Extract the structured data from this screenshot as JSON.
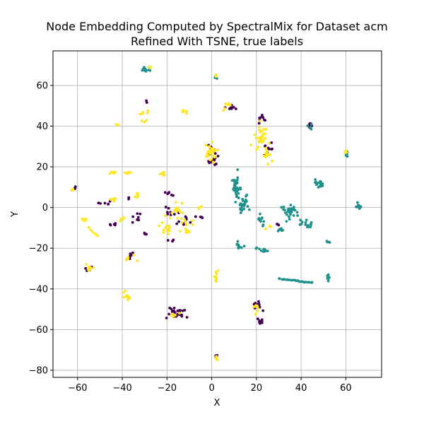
{
  "chart_data": {
    "type": "scatter",
    "title": "Node Embedding Computed by SpectralMix for Dataset acm",
    "subtitle": "Refined With TSNE, true labels",
    "xlabel": "X",
    "ylabel": "Y",
    "xlim": [
      -71,
      76
    ],
    "ylim": [
      -83.5,
      77
    ],
    "x_ticks": [
      -60,
      -40,
      -20,
      0,
      20,
      40,
      60
    ],
    "y_ticks": [
      -80,
      -60,
      -40,
      -20,
      0,
      20,
      40,
      60
    ],
    "grid": true,
    "legend": "none",
    "colors": {
      "purple": "#440154",
      "teal": "#21918c",
      "yellow": "#fde725"
    },
    "series": [
      {
        "color": "#440154",
        "clusters": [
          {
            "x": -55,
            "y": -30,
            "sx": 1.5,
            "sy": 1.2,
            "n": 6
          },
          {
            "x": -37,
            "y": -24,
            "sx": 1.5,
            "sy": 2.0,
            "n": 8
          },
          {
            "x": -33,
            "y": -5,
            "sx": 2.0,
            "sy": 3.0,
            "n": 8
          },
          {
            "x": -44,
            "y": -8,
            "sx": 1.5,
            "sy": 1.5,
            "n": 5
          },
          {
            "x": -47,
            "y": 2,
            "sx": 1.5,
            "sy": 1.0,
            "n": 4
          },
          {
            "x": -37,
            "y": 5,
            "sx": 1.0,
            "sy": 1.0,
            "n": 2
          },
          {
            "x": -29,
            "y": 52,
            "sx": 0.5,
            "sy": 0.5,
            "n": 2
          },
          {
            "x": -19,
            "y": 7,
            "sx": 2.0,
            "sy": 2.0,
            "n": 6
          },
          {
            "x": -20,
            "y": -2,
            "sx": 2.5,
            "sy": 1.5,
            "n": 6
          },
          {
            "x": -13,
            "y": -6,
            "sx": 4.0,
            "sy": 2.5,
            "n": 12
          },
          {
            "x": -18,
            "y": -16,
            "sx": 1.5,
            "sy": 1.5,
            "n": 3
          },
          {
            "x": 0,
            "y": 24,
            "sx": 2.2,
            "sy": 3.5,
            "n": 22
          },
          {
            "x": -5,
            "y": -5,
            "sx": 1.0,
            "sy": 1.0,
            "n": 3
          },
          {
            "x": 8,
            "y": 50,
            "sx": 2.5,
            "sy": 1.5,
            "n": 8
          },
          {
            "x": 22,
            "y": 43,
            "sx": 1.5,
            "sy": 2.0,
            "n": 8
          },
          {
            "x": 25,
            "y": 30,
            "sx": 2.0,
            "sy": 3.0,
            "n": 10
          },
          {
            "x": 21,
            "y": -48,
            "sx": 1.5,
            "sy": 1.5,
            "n": 12
          },
          {
            "x": 22,
            "y": -56,
            "sx": 1.0,
            "sy": 1.5,
            "n": 8
          },
          {
            "x": -15,
            "y": -52,
            "sx": 4.0,
            "sy": 2.0,
            "n": 28
          },
          {
            "x": 44,
            "y": 41,
            "sx": 0.6,
            "sy": 1.5,
            "n": 8
          },
          {
            "x": -62,
            "y": 10,
            "sx": 1.0,
            "sy": 0.6,
            "n": 3
          },
          {
            "x": 2,
            "y": -73,
            "sx": 0.5,
            "sy": 1.0,
            "n": 4
          },
          {
            "x": -50,
            "y": 2,
            "sx": 1.0,
            "sy": 1.0,
            "n": 2
          },
          {
            "x": -30,
            "y": -13,
            "sx": 1.0,
            "sy": 1.0,
            "n": 3
          },
          {
            "x": 29,
            "y": -8,
            "sx": 1.0,
            "sy": 1.0,
            "n": 3
          }
        ]
      },
      {
        "color": "#21918c",
        "clusters": [
          {
            "x": 11,
            "y": 10,
            "sx": 1.2,
            "sy": 4.0,
            "n": 40
          },
          {
            "x": 14,
            "y": 2,
            "sx": 1.5,
            "sy": 4.0,
            "n": 30
          },
          {
            "x": 22,
            "y": -6,
            "sx": 1.5,
            "sy": 2.0,
            "n": 10
          },
          {
            "x": 35,
            "y": -2,
            "sx": 3.0,
            "sy": 3.0,
            "n": 30
          },
          {
            "x": 42,
            "y": -8,
            "sx": 2.0,
            "sy": 2.0,
            "n": 14
          },
          {
            "x": 48,
            "y": 12,
            "sx": 2.0,
            "sy": 1.2,
            "n": 18
          },
          {
            "x": 66,
            "y": 1,
            "sx": 1.0,
            "sy": 1.0,
            "n": 12
          },
          {
            "x": 52,
            "y": -17,
            "sx": 0.8,
            "sy": 0.5,
            "n": 5
          },
          {
            "x": 52,
            "y": -34,
            "sx": 0.5,
            "sy": 1.5,
            "n": 10
          },
          {
            "x": 60,
            "y": 27,
            "sx": 0.6,
            "sy": 1.5,
            "n": 10
          },
          {
            "x": 44,
            "y": 40,
            "sx": 0.6,
            "sy": 1.5,
            "n": 6
          },
          {
            "x": -30,
            "y": 68,
            "sx": 1.5,
            "sy": 0.8,
            "n": 10
          },
          {
            "x": 12,
            "y": -18,
            "sx": 1.5,
            "sy": 2.0,
            "n": 10
          },
          {
            "x": 23,
            "y": -21,
            "sx": 2.0,
            "sy": 0.8,
            "n": 12
          },
          {
            "x": 2,
            "y": 64,
            "sx": 0.6,
            "sy": 1.0,
            "n": 4
          },
          {
            "x": 31,
            "y": -10,
            "sx": 1.0,
            "sy": 1.5,
            "n": 6
          }
        ],
        "line": {
          "x0": 30,
          "x1": 45,
          "y0": -35,
          "y1": -37,
          "n": 22
        }
      },
      {
        "color": "#fde725",
        "clusters": [
          {
            "x": 0,
            "y": 26,
            "sx": 2.2,
            "sy": 4.0,
            "n": 30
          },
          {
            "x": 22,
            "y": 35,
            "sx": 2.5,
            "sy": 4.0,
            "n": 30
          },
          {
            "x": 25,
            "y": 25,
            "sx": 1.5,
            "sy": 2.5,
            "n": 12
          },
          {
            "x": -55,
            "y": -30,
            "sx": 1.5,
            "sy": 1.2,
            "n": 10
          },
          {
            "x": -38,
            "y": -43,
            "sx": 1.2,
            "sy": 1.5,
            "n": 10
          },
          {
            "x": -20,
            "y": -10,
            "sx": 2.0,
            "sy": 4.0,
            "n": 14
          },
          {
            "x": -15,
            "y": -2,
            "sx": 3.0,
            "sy": 3.0,
            "n": 16
          },
          {
            "x": -11,
            "y": -10,
            "sx": 3.0,
            "sy": 2.0,
            "n": 12
          },
          {
            "x": -22,
            "y": 16,
            "sx": 1.0,
            "sy": 1.0,
            "n": 6
          },
          {
            "x": -38,
            "y": 17,
            "sx": 2.0,
            "sy": 0.6,
            "n": 6
          },
          {
            "x": -44,
            "y": 17,
            "sx": 1.5,
            "sy": 0.6,
            "n": 6
          },
          {
            "x": -44,
            "y": 4,
            "sx": 1.5,
            "sy": 0.8,
            "n": 8
          },
          {
            "x": -33,
            "y": 6,
            "sx": 1.5,
            "sy": 1.5,
            "n": 6
          },
          {
            "x": -40,
            "y": -6,
            "sx": 1.2,
            "sy": 2.0,
            "n": 6
          },
          {
            "x": -36,
            "y": -25,
            "sx": 2.0,
            "sy": 1.0,
            "n": 6
          },
          {
            "x": -57,
            "y": -6,
            "sx": 0.8,
            "sy": 1.0,
            "n": 6
          },
          {
            "x": -62,
            "y": 9,
            "sx": 0.6,
            "sy": 0.6,
            "n": 3
          },
          {
            "x": -30,
            "y": 45,
            "sx": 1.5,
            "sy": 2.0,
            "n": 8
          },
          {
            "x": -12,
            "y": 47,
            "sx": 1.2,
            "sy": 0.8,
            "n": 6
          },
          {
            "x": 7,
            "y": 50,
            "sx": 1.5,
            "sy": 1.5,
            "n": 6
          },
          {
            "x": 2,
            "y": 65,
            "sx": 0.5,
            "sy": 0.8,
            "n": 4
          },
          {
            "x": -28,
            "y": 69,
            "sx": 0.8,
            "sy": 0.6,
            "n": 3
          },
          {
            "x": 20,
            "y": -50,
            "sx": 1.5,
            "sy": 3.0,
            "n": 8
          },
          {
            "x": -17,
            "y": -53,
            "sx": 2.5,
            "sy": 1.5,
            "n": 6
          },
          {
            "x": 2,
            "y": -35,
            "sx": 0.8,
            "sy": 3.0,
            "n": 12
          },
          {
            "x": 2,
            "y": -74,
            "sx": 0.5,
            "sy": 0.8,
            "n": 3
          },
          {
            "x": 60,
            "y": 27,
            "sx": 0.5,
            "sy": 1.0,
            "n": 3
          },
          {
            "x": 26,
            "y": -10,
            "sx": 1.0,
            "sy": 1.0,
            "n": 3
          },
          {
            "x": -5,
            "y": 0,
            "sx": 1.0,
            "sy": 1.0,
            "n": 3
          },
          {
            "x": -42,
            "y": 41,
            "sx": 0.4,
            "sy": 0.4,
            "n": 2
          }
        ],
        "line": {
          "x0": -55,
          "x1": -51,
          "y0": -10,
          "y1": -14,
          "n": 6
        }
      }
    ]
  }
}
